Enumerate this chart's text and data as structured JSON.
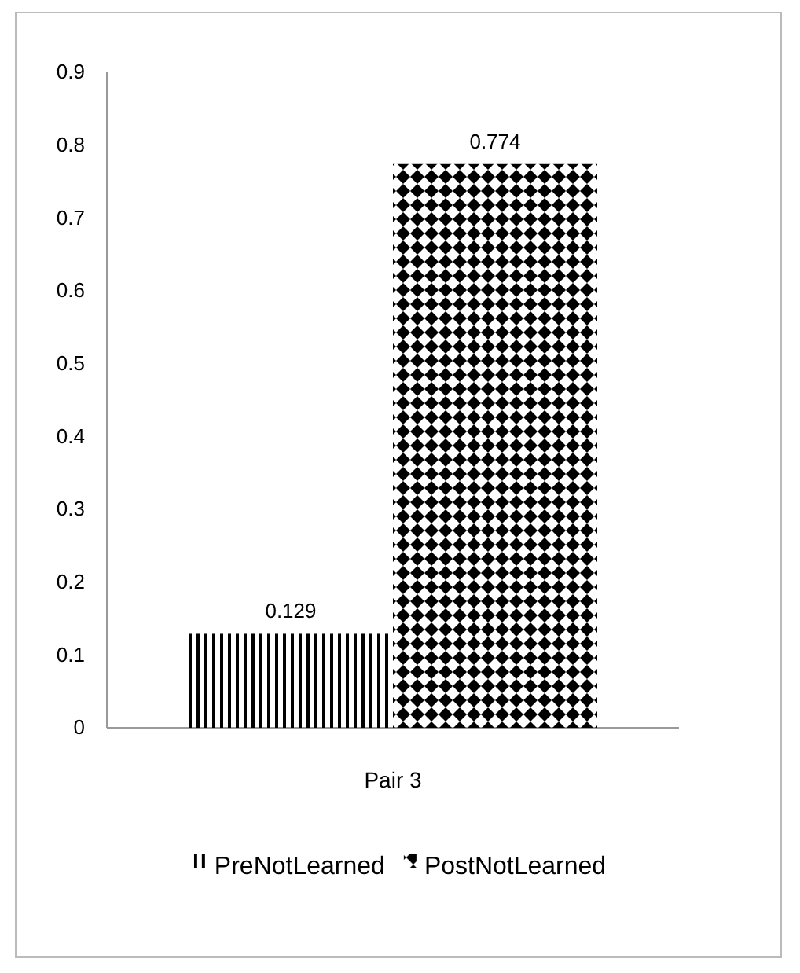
{
  "chart_data": {
    "type": "bar",
    "categories": [
      "Pair 3"
    ],
    "series": [
      {
        "name": "PreNotLearned",
        "color": "#000000",
        "values": [
          0.129
        ]
      },
      {
        "name": "PostNotLearned",
        "color": "#000000",
        "values": [
          0.774
        ]
      }
    ],
    "ylim": [
      0,
      0.9
    ],
    "yticks": [
      0,
      0.1,
      0.2,
      0.3,
      0.4,
      0.5,
      0.6,
      0.7,
      0.8,
      0.9
    ],
    "data_labels": true,
    "legend": "bottom",
    "grid": false
  }
}
